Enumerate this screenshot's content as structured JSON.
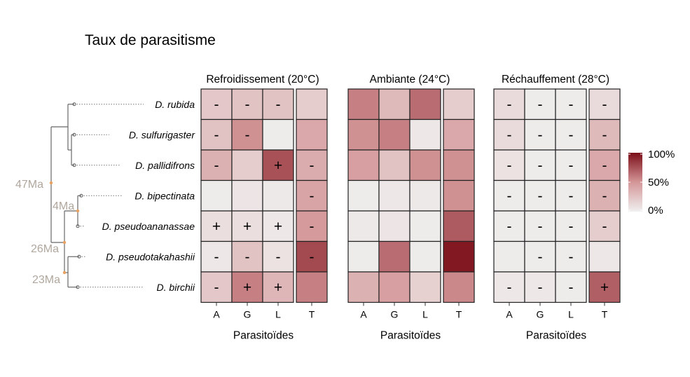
{
  "title": "Taux de parasitisme",
  "chart_data": {
    "type": "heatmap",
    "title": "Taux de parasitisme",
    "species": [
      "D. rubida",
      "D. sulfurigaster",
      "D. pallidifrons",
      "D. bipectinata",
      "D. pseudoananassae",
      "D. pseudotakahashii",
      "D. birchii"
    ],
    "columns": [
      "A",
      "G",
      "L",
      "T"
    ],
    "xlabel": "Parasitoïdes",
    "tree": {
      "node_ages": [
        "47Ma",
        "4Ma",
        "26Ma",
        "23Ma"
      ]
    },
    "legend": {
      "labels": [
        "100%",
        "50%",
        "0%"
      ],
      "low_color": "#f0f0f0",
      "high_color": "#7b0e18",
      "range": [
        0,
        100
      ],
      "position": "right"
    },
    "panels": [
      {
        "title": "Refroidissement (20°C)",
        "values": [
          [
            22,
            25,
            25,
            20
          ],
          [
            25,
            52,
            3,
            40
          ],
          [
            35,
            20,
            75,
            38
          ],
          [
            3,
            6,
            4,
            42
          ],
          [
            10,
            10,
            5,
            48
          ],
          [
            5,
            25,
            8,
            78
          ],
          [
            22,
            58,
            32,
            58
          ]
        ],
        "signs": [
          [
            "-",
            "-",
            "-",
            ""
          ],
          [
            "-",
            "-",
            "",
            ""
          ],
          [
            "-",
            "",
            "+",
            "-"
          ],
          [
            "",
            "",
            "",
            "-"
          ],
          [
            "+",
            "+",
            "+",
            "-"
          ],
          [
            "-",
            "-",
            "-",
            "-"
          ],
          [
            "-",
            "+",
            "+",
            ""
          ]
        ]
      },
      {
        "title": "Ambiante (24°C)",
        "values": [
          [
            58,
            30,
            65,
            20
          ],
          [
            52,
            58,
            5,
            40
          ],
          [
            45,
            25,
            52,
            52
          ],
          [
            3,
            5,
            4,
            52
          ],
          [
            4,
            6,
            3,
            72
          ],
          [
            3,
            65,
            3,
            96
          ],
          [
            35,
            45,
            18,
            55
          ]
        ],
        "signs": [
          [
            "",
            "",
            "",
            ""
          ],
          [
            "",
            "",
            "",
            ""
          ],
          [
            "",
            "",
            "",
            ""
          ],
          [
            "",
            "",
            "",
            ""
          ],
          [
            "",
            "",
            "",
            ""
          ],
          [
            "",
            "",
            "",
            ""
          ],
          [
            "",
            "",
            "",
            ""
          ]
        ]
      },
      {
        "title": "Réchauffement (28°C)",
        "values": [
          [
            12,
            3,
            3,
            12
          ],
          [
            12,
            3,
            3,
            30
          ],
          [
            8,
            3,
            3,
            40
          ],
          [
            3,
            3,
            3,
            35
          ],
          [
            3,
            3,
            3,
            20
          ],
          [
            3,
            3,
            3,
            5
          ],
          [
            5,
            5,
            3,
            70
          ]
        ],
        "signs": [
          [
            "-",
            "-",
            "-",
            "-"
          ],
          [
            "-",
            "-",
            "-",
            "-"
          ],
          [
            "-",
            "-",
            "-",
            "-"
          ],
          [
            "-",
            "-",
            "-",
            "-"
          ],
          [
            "-",
            "-",
            "-",
            "-"
          ],
          [
            "",
            "-",
            "-",
            ""
          ],
          [
            "-",
            "-",
            "-",
            "+"
          ]
        ]
      }
    ]
  }
}
